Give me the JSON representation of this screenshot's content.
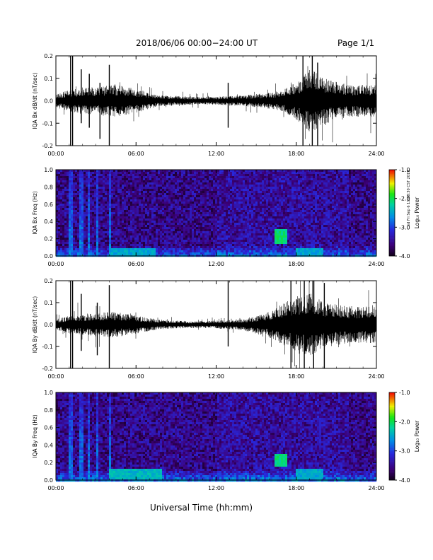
{
  "header": {
    "title": "2018/06/06  00:00−24:00 UT",
    "page": "Page 1/1"
  },
  "side_stamp": "ed Fri Sep 6 11:48:30 CST 2019",
  "x_axis_title": "Universal Time (hh:mm)",
  "colors": {
    "background": "#ffffff",
    "ink": "#000000",
    "spectrogram_bg": "#3a2aa0"
  },
  "chart_data": [
    {
      "type": "line",
      "ylabel": "IQA Bx dB/dt (nT/sec)",
      "xlim": [
        0,
        24
      ],
      "ylim": [
        -0.2,
        0.2
      ],
      "x_ticks": [
        "00:00",
        "06:00",
        "12:00",
        "18:00",
        "24:00"
      ],
      "y_ticks": [
        "-0.2",
        "-0.1",
        "0.0",
        "0.1",
        "0.2"
      ],
      "envelope": {
        "hours": [
          0,
          1,
          2,
          3,
          4,
          5,
          6,
          7,
          8,
          9,
          10,
          11,
          12,
          13,
          14,
          15,
          16,
          17,
          18,
          19,
          20,
          21,
          22,
          23,
          24
        ],
        "amplitude": [
          0.025,
          0.04,
          0.05,
          0.05,
          0.06,
          0.055,
          0.045,
          0.03,
          0.02,
          0.018,
          0.015,
          0.015,
          0.015,
          0.018,
          0.02,
          0.025,
          0.03,
          0.04,
          0.07,
          0.12,
          0.09,
          0.07,
          0.06,
          0.06,
          0.06
        ]
      },
      "spikes": [
        {
          "t": 1.1,
          "min": -0.2,
          "max": 0.2
        },
        {
          "t": 1.25,
          "min": -0.2,
          "max": 0.2
        },
        {
          "t": 1.9,
          "min": -0.1,
          "max": 0.14
        },
        {
          "t": 2.5,
          "min": -0.12,
          "max": 0.12
        },
        {
          "t": 3.3,
          "min": -0.17,
          "max": 0.08
        },
        {
          "t": 4.0,
          "min": -0.2,
          "max": 0.16
        },
        {
          "t": 12.9,
          "min": -0.12,
          "max": 0.08
        },
        {
          "t": 18.5,
          "min": -0.2,
          "max": 0.2
        },
        {
          "t": 19.2,
          "min": -0.2,
          "max": 0.2
        },
        {
          "t": 19.6,
          "min": -0.2,
          "max": 0.17
        }
      ]
    },
    {
      "type": "heatmap",
      "ylabel": "IQA Bx Freq (Hz)",
      "xlim": [
        0,
        24
      ],
      "ylim": [
        0.0,
        1.0
      ],
      "x_ticks": [
        "00:00",
        "06:00",
        "12:00",
        "18:00",
        "24:00"
      ],
      "y_ticks": [
        "0.0",
        "0.2",
        "0.4",
        "0.6",
        "0.8",
        "1.0"
      ],
      "colorbar": {
        "label": "Log₁₀ Power",
        "range": [
          -4.0,
          -1.0
        ],
        "ticks": [
          "-1.0",
          "-2.0",
          "-3.0",
          "-4.0"
        ]
      },
      "features": [
        {
          "t0": 16.3,
          "t1": 17.3,
          "f0": 0.15,
          "f1": 0.3,
          "level": -2.1
        },
        {
          "t0": 4.0,
          "t1": 7.5,
          "f0": 0.0,
          "f1": 0.08,
          "level": -2.5
        },
        {
          "t0": 18.0,
          "t1": 20.0,
          "f0": 0.0,
          "f1": 0.1,
          "level": -2.5
        }
      ]
    },
    {
      "type": "line",
      "ylabel": "IQA By dB/dt (nT/sec)",
      "xlim": [
        0,
        24
      ],
      "ylim": [
        -0.2,
        0.2
      ],
      "x_ticks": [
        "00:00",
        "06:00",
        "12:00",
        "18:00",
        "24:00"
      ],
      "y_ticks": [
        "-0.2",
        "-0.1",
        "0.0",
        "0.1",
        "0.2"
      ],
      "envelope": {
        "hours": [
          0,
          1,
          2,
          3,
          4,
          5,
          6,
          7,
          8,
          9,
          10,
          11,
          12,
          13,
          14,
          15,
          16,
          17,
          18,
          19,
          20,
          21,
          22,
          23,
          24
        ],
        "amplitude": [
          0.02,
          0.035,
          0.04,
          0.045,
          0.05,
          0.045,
          0.035,
          0.025,
          0.018,
          0.015,
          0.013,
          0.013,
          0.015,
          0.018,
          0.022,
          0.035,
          0.05,
          0.08,
          0.11,
          0.12,
          0.09,
          0.08,
          0.07,
          0.07,
          0.07
        ]
      },
      "spikes": [
        {
          "t": 1.1,
          "min": -0.2,
          "max": 0.2
        },
        {
          "t": 1.25,
          "min": -0.2,
          "max": 0.2
        },
        {
          "t": 1.9,
          "min": -0.12,
          "max": 0.14
        },
        {
          "t": 3.1,
          "min": -0.14,
          "max": 0.1
        },
        {
          "t": 4.0,
          "min": -0.2,
          "max": 0.18
        },
        {
          "t": 12.9,
          "min": -0.1,
          "max": 0.2
        },
        {
          "t": 17.6,
          "min": -0.2,
          "max": 0.2
        },
        {
          "t": 18.6,
          "min": -0.2,
          "max": 0.2
        },
        {
          "t": 19.3,
          "min": -0.2,
          "max": 0.2
        },
        {
          "t": 20.1,
          "min": -0.2,
          "max": 0.19
        }
      ]
    },
    {
      "type": "heatmap",
      "ylabel": "IQA By Freq (Hz)",
      "xlim": [
        0,
        24
      ],
      "ylim": [
        0.0,
        1.0
      ],
      "x_ticks": [
        "00:00",
        "06:00",
        "12:00",
        "18:00",
        "24:00"
      ],
      "y_ticks": [
        "0.0",
        "0.2",
        "0.4",
        "0.6",
        "0.8",
        "1.0"
      ],
      "colorbar": {
        "label": "Log₁₀ Power",
        "range": [
          -4.0,
          -1.0
        ],
        "ticks": [
          "-1.0",
          "-2.0",
          "-3.0",
          "-4.0"
        ]
      },
      "features": [
        {
          "t0": 16.3,
          "t1": 17.3,
          "f0": 0.15,
          "f1": 0.3,
          "level": -2.1
        },
        {
          "t0": 4.0,
          "t1": 8.0,
          "f0": 0.0,
          "f1": 0.12,
          "level": -2.4
        },
        {
          "t0": 18.0,
          "t1": 20.0,
          "f0": 0.0,
          "f1": 0.12,
          "level": -2.5
        }
      ]
    }
  ]
}
